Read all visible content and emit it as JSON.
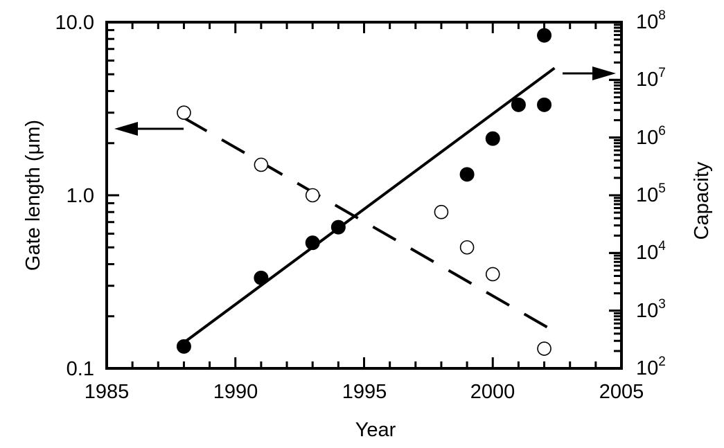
{
  "chart_data": {
    "type": "scatter",
    "title": "",
    "xlabel": "Year",
    "ylabel": "Gate length (μm)",
    "ylabel_right": "Capacity",
    "xlim": [
      1985,
      2005
    ],
    "ylim": [
      0.1,
      10.0
    ],
    "ylim_right": [
      100,
      100000000
    ],
    "yscale": "log",
    "yscale_right": "log",
    "grid": false,
    "legend": "none (arrows indicate axis association)",
    "x_ticks": [
      "1985",
      "1990",
      "1995",
      "2000",
      "2005"
    ],
    "y_ticks_left": [
      "0.1",
      "1.0",
      "10.0"
    ],
    "y_ticks_right": [
      {
        "base": "10",
        "exp": "2"
      },
      {
        "base": "10",
        "exp": "3"
      },
      {
        "base": "10",
        "exp": "4"
      },
      {
        "base": "10",
        "exp": "5"
      },
      {
        "base": "10",
        "exp": "6"
      },
      {
        "base": "10",
        "exp": "7"
      },
      {
        "base": "10",
        "exp": "8"
      }
    ],
    "series": [
      {
        "name": "Gate length",
        "axis": "left",
        "marker": "open-circle",
        "x": [
          1988,
          1991,
          1993,
          1998,
          1999,
          2000,
          2002
        ],
        "values": [
          3.0,
          1.5,
          1.0,
          0.8,
          0.5,
          0.35,
          0.13
        ],
        "trend": {
          "style": "dashed",
          "from": [
            1988,
            2.8
          ],
          "to": [
            2002.2,
            0.17
          ]
        }
      },
      {
        "name": "Capacity",
        "axis": "right",
        "marker": "filled-circle",
        "x": [
          1988,
          1991,
          1993,
          1994,
          1999,
          2000,
          2001,
          2002,
          2002
        ],
        "values": [
          240,
          3700,
          15000,
          28000,
          230000,
          960000,
          3700000,
          3700000,
          59000000
        ],
        "trend": {
          "style": "solid",
          "from": [
            1988,
            280
          ],
          "to": [
            2002.4,
            16000000
          ]
        }
      }
    ],
    "annotations": [
      {
        "type": "arrow",
        "direction": "left",
        "meaning": "open circles refer to left axis (Gate length)"
      },
      {
        "type": "arrow",
        "direction": "right",
        "meaning": "filled circles refer to right axis (Capacity)"
      }
    ]
  }
}
